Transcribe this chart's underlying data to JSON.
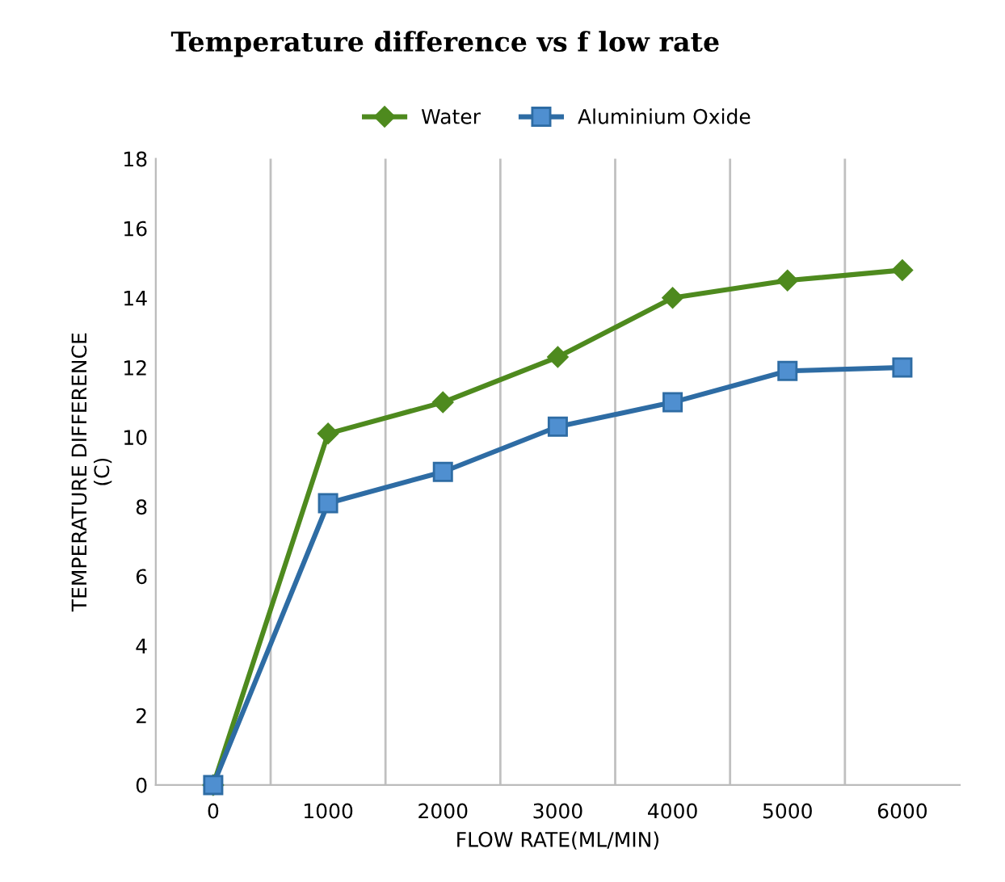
{
  "chart_data": {
    "type": "line",
    "title": "Temperature difference vs f low rate",
    "xlabel": "FLOW RATE(ML/MIN)",
    "ylabel": "TEMPERATURE DIFFERENCE\n(C)",
    "categories": [
      "0",
      "1000",
      "2000",
      "3000",
      "4000",
      "5000",
      "6000"
    ],
    "series": [
      {
        "name": "Water",
        "color": "#4e8a1e",
        "marker": "diamond",
        "values": [
          0,
          10.1,
          11.0,
          12.3,
          14.0,
          14.5,
          14.8
        ]
      },
      {
        "name": "Aluminium Oxide",
        "color": "#2e6ca4",
        "marker": "square",
        "values": [
          0,
          8.1,
          9.0,
          10.3,
          11.0,
          11.9,
          12.0
        ]
      }
    ],
    "ylim": [
      0,
      18
    ],
    "yticks": [
      0,
      2,
      4,
      6,
      8,
      10,
      12,
      14,
      16,
      18
    ],
    "grid": "x",
    "legend": "top",
    "line_style": "solid"
  }
}
